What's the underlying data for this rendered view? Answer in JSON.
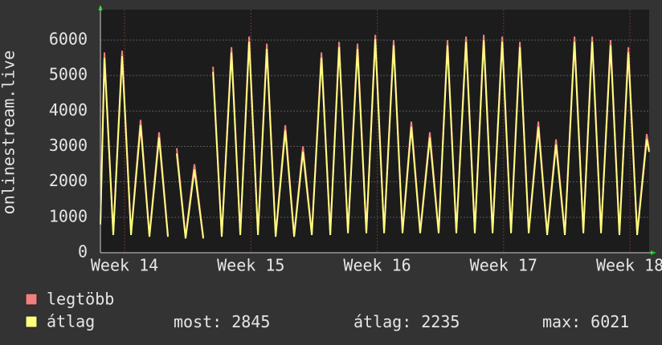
{
  "chart_data": {
    "type": "line",
    "ylabel": "onlinestream.live",
    "x": [
      13.809,
      13.841,
      13.911,
      13.981,
      14.051,
      14.127,
      14.197,
      14.273,
      14.343,
      14.388,
      14.413,
      14.483,
      14.553,
      14.623,
      14.655,
      14.7,
      14.769,
      14.846,
      14.916,
      14.986,
      15.056,
      15.126,
      15.196,
      15.272,
      15.342,
      15.412,
      15.482,
      15.558,
      15.628,
      15.698,
      15.768,
      15.844,
      15.914,
      15.984,
      16.054,
      16.13,
      16.2,
      16.27,
      16.34,
      16.416,
      16.486,
      16.556,
      16.626,
      16.703,
      16.772,
      16.843,
      16.913,
      16.989,
      17.059,
      17.129,
      17.199,
      17.275,
      17.345,
      17.415,
      17.485,
      17.561,
      17.631,
      17.701,
      17.771,
      17.847,
      17.917,
      17.987,
      18.057,
      18.133,
      18.152
    ],
    "series": [
      {
        "name": "legtöbb",
        "color": "#f08080",
        "values": [
          850,
          5650,
          550,
          5700,
          550,
          3750,
          500,
          3400,
          500,
          null,
          2950,
          450,
          2500,
          450,
          null,
          5250,
          500,
          5800,
          550,
          6100,
          550,
          5900,
          500,
          3600,
          500,
          3000,
          550,
          5650,
          550,
          5950,
          600,
          5900,
          600,
          6150,
          600,
          6000,
          600,
          3700,
          600,
          3400,
          600,
          6000,
          600,
          6100,
          600,
          6150,
          600,
          6100,
          600,
          5950,
          600,
          3700,
          550,
          3200,
          550,
          6100,
          600,
          6100,
          600,
          6000,
          550,
          5800,
          550,
          3350,
          2900
        ]
      },
      {
        "name": "átlag",
        "color": "#ffff80",
        "values": [
          800,
          5500,
          500,
          5550,
          500,
          3600,
          450,
          3250,
          450,
          null,
          2800,
          400,
          2350,
          400,
          null,
          5100,
          450,
          5650,
          500,
          5950,
          500,
          5750,
          450,
          3450,
          450,
          2850,
          500,
          5500,
          500,
          5800,
          550,
          5750,
          550,
          6021,
          550,
          5850,
          550,
          3550,
          550,
          3250,
          550,
          5850,
          550,
          5950,
          550,
          6000,
          550,
          5950,
          550,
          5800,
          550,
          3550,
          500,
          3050,
          500,
          5950,
          550,
          5950,
          550,
          5850,
          500,
          5650,
          500,
          3200,
          2845
        ]
      }
    ],
    "xlim": [
      13.809,
      18.152
    ],
    "xticks": [
      {
        "value": 14,
        "label": "Week 14"
      },
      {
        "value": 15,
        "label": "Week 15"
      },
      {
        "value": 16,
        "label": "Week 16"
      },
      {
        "value": 17,
        "label": "Week 17"
      },
      {
        "value": 18,
        "label": "Week 18"
      }
    ],
    "ylim": [
      0,
      6860
    ],
    "yticks": [
      0,
      1000,
      2000,
      3000,
      4000,
      5000,
      6000
    ],
    "grid": true,
    "stats": [
      {
        "label": "most:",
        "value": 2845
      },
      {
        "label": "átlag:",
        "value": 2235
      },
      {
        "label": "max:",
        "value": 6021
      }
    ]
  }
}
